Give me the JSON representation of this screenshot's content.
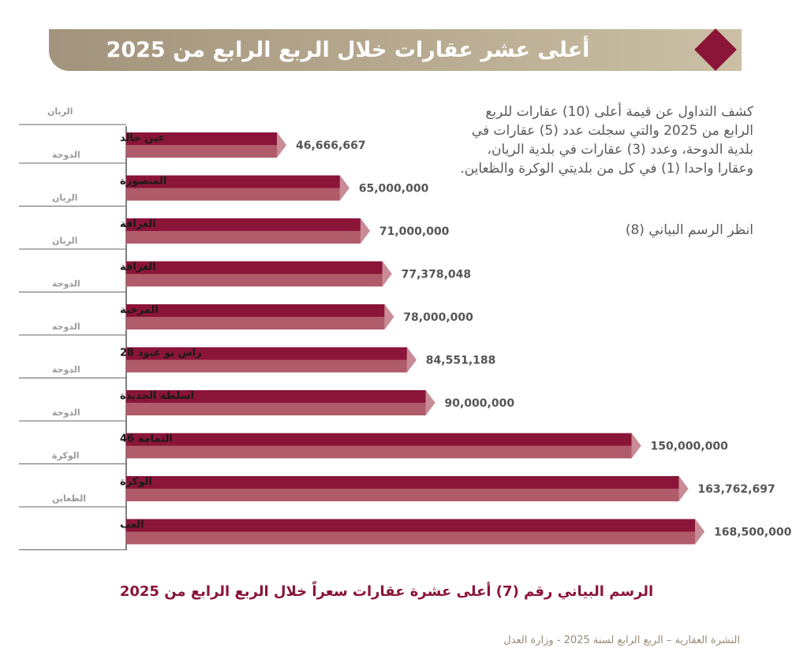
{
  "header": {
    "title": "أعلى عشر عقارات خلال الربع الرابع من 2025"
  },
  "description": {
    "paragraph": "كشف التداول عن قيمة أعلى (10) عقارات للربع الرابع من  2025 والتي سجلت عدد (5) عقارات في بلدية الدوحة، وعدد (3) عقارات في بلدية الريان، وعقارا واحدا (1) في كل من بلديتي الوكرة والظعاين.",
    "see_chart": "انظر الرسم البياني (8)"
  },
  "chart_data": {
    "type": "bar",
    "orientation": "horizontal",
    "title": "الرسم البياني رقم (7) أعلى عشرة عقارات سعراً خلال الربع الرابع من 2025",
    "categories": [
      "عين خالد",
      "المنصورة",
      "الغرافة",
      "الغرافة",
      "المرخية",
      "راس بو عبود 28",
      "اسلطة الجديدة",
      "الثمامة 46",
      "الوكرة",
      "العب"
    ],
    "sublabels": [
      "الريان",
      "الدوحة",
      "الريان",
      "الريان",
      "الدوحة",
      "الدوحة",
      "الدوحة",
      "الدوحة",
      "الوكرة",
      "الظعاين"
    ],
    "values": [
      46666667,
      65000000,
      71000000,
      77378048,
      78000000,
      84551188,
      90000000,
      150000000,
      163762697,
      168500000
    ],
    "value_labels": [
      "46,666,667",
      "65,000,000",
      "71,000,000",
      "77,378,048",
      "78,000,000",
      "84,551,188",
      "90,000,000",
      "150,000,000",
      "163,762,697",
      "168,500,000"
    ],
    "colors": {
      "bar_top": "#8a1538",
      "bar_bottom": "#b05b6a",
      "bar_tip": "#c98c96"
    }
  },
  "footer": {
    "text": "النشرة العقارية – الربع الرابع لسنة 2025 - وزارة العدل"
  }
}
